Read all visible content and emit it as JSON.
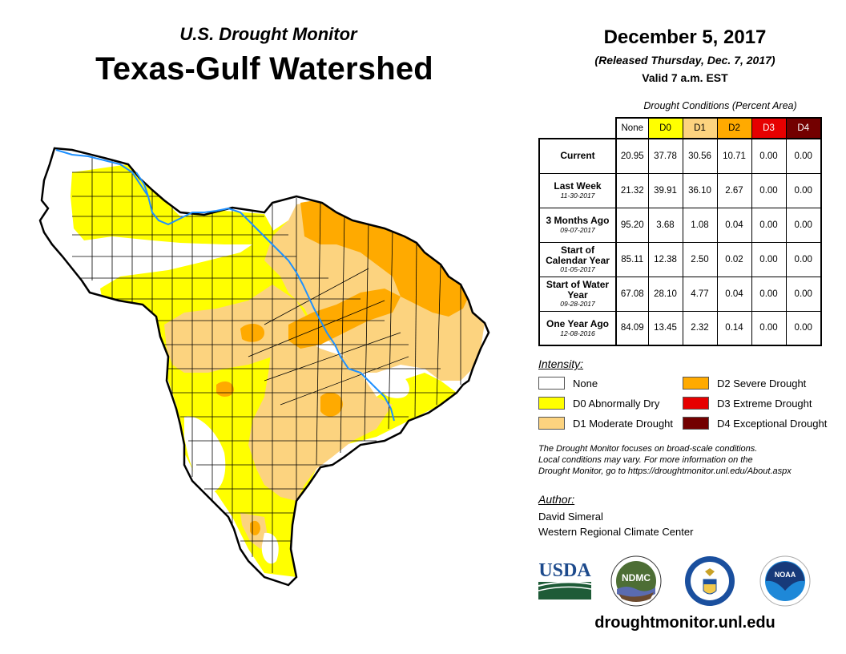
{
  "header": {
    "subtitle": "U.S. Drought Monitor",
    "title": "Texas-Gulf Watershed",
    "date": "December 5, 2017",
    "released": "(Released Thursday, Dec. 7, 2017)",
    "valid": "Valid 7 a.m. EST"
  },
  "table": {
    "caption": "Drought Conditions (Percent Area)",
    "columns": [
      {
        "label": "None",
        "color": "#ffffff",
        "text_color": "#000000"
      },
      {
        "label": "D0",
        "color": "#ffff00",
        "text_color": "#000000"
      },
      {
        "label": "D1",
        "color": "#fcd37f",
        "text_color": "#000000"
      },
      {
        "label": "D2",
        "color": "#ffaa00",
        "text_color": "#000000"
      },
      {
        "label": "D3",
        "color": "#e60000",
        "text_color": "#ffffff"
      },
      {
        "label": "D4",
        "color": "#730000",
        "text_color": "#ffffff"
      }
    ],
    "rows": [
      {
        "label": "Current",
        "date": "",
        "values": [
          "20.95",
          "37.78",
          "30.56",
          "10.71",
          "0.00",
          "0.00"
        ]
      },
      {
        "label": "Last Week",
        "date": "11-30-2017",
        "values": [
          "21.32",
          "39.91",
          "36.10",
          "2.67",
          "0.00",
          "0.00"
        ]
      },
      {
        "label": "3 Months Ago",
        "date": "09-07-2017",
        "values": [
          "95.20",
          "3.68",
          "1.08",
          "0.04",
          "0.00",
          "0.00"
        ]
      },
      {
        "label": "Start of Calendar Year",
        "date": "01-05-2017",
        "values": [
          "85.11",
          "12.38",
          "2.50",
          "0.02",
          "0.00",
          "0.00"
        ]
      },
      {
        "label": "Start of Water Year",
        "date": "09-28-2017",
        "values": [
          "67.08",
          "28.10",
          "4.77",
          "0.04",
          "0.00",
          "0.00"
        ]
      },
      {
        "label": "One Year Ago",
        "date": "12-08-2016",
        "values": [
          "84.09",
          "13.45",
          "2.32",
          "0.14",
          "0.00",
          "0.00"
        ]
      }
    ]
  },
  "legend": {
    "title": "Intensity:",
    "items": [
      {
        "label": "None",
        "color": "#ffffff"
      },
      {
        "label": "D0 Abnormally Dry",
        "color": "#ffff00"
      },
      {
        "label": "D1 Moderate Drought",
        "color": "#fcd37f"
      },
      {
        "label": "D2 Severe Drought",
        "color": "#ffaa00"
      },
      {
        "label": "D3 Extreme Drought",
        "color": "#e60000"
      },
      {
        "label": "D4 Exceptional Drought",
        "color": "#730000"
      }
    ]
  },
  "disclaimer": {
    "line1": "The Drought Monitor focuses on broad-scale conditions.",
    "line2": "Local conditions may vary. For more information on the",
    "line3": "Drought Monitor, go to https://droughtmonitor.unl.edu/About.aspx"
  },
  "author": {
    "title": "Author:",
    "name": "David Simeral",
    "org": "Western Regional Climate Center"
  },
  "logos": {
    "usda": "USDA",
    "ndmc": "NDMC",
    "noaa": "NOAA"
  },
  "footer": {
    "website": "droughtmonitor.unl.edu"
  },
  "map": {
    "region": "Texas-Gulf Watershed",
    "colors": {
      "none": "#ffffff",
      "d0": "#ffff00",
      "d1": "#fcd37f",
      "d2": "#ffaa00",
      "river": "#1e90ff",
      "border": "#000000"
    }
  }
}
